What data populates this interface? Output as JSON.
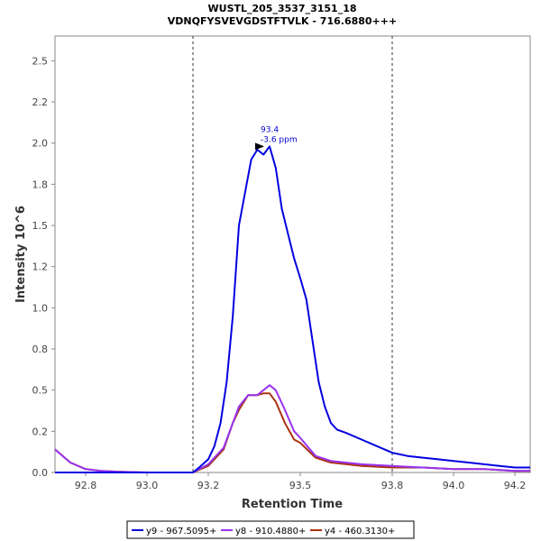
{
  "chart_data": {
    "type": "line",
    "title": "WUSTL_205_3537_3151_18",
    "subtitle": "VDNQFYSVEVGDSTFTVLK - 716.6880+++",
    "xlabel": "Retention Time",
    "ylabel": "Intensity 10^6",
    "xlim": [
      92.7,
      94.25
    ],
    "ylim": [
      0,
      2.65
    ],
    "x_ticks": [
      "92.8",
      "93.0",
      "93.2",
      "93.5",
      "93.8",
      "94.0",
      "94.2"
    ],
    "x_tick_values": [
      92.8,
      93.0,
      93.2,
      93.5,
      93.8,
      94.0,
      94.2
    ],
    "y_ticks": [
      "0.0",
      "0.2",
      "0.5",
      "0.8",
      "1.0",
      "1.2",
      "1.5",
      "1.8",
      "2.0",
      "2.2",
      "2.5"
    ],
    "y_tick_values": [
      0.0,
      0.25,
      0.5,
      0.75,
      1.0,
      1.25,
      1.5,
      1.75,
      2.0,
      2.25,
      2.5
    ],
    "integration_bounds": [
      93.15,
      93.8
    ],
    "peak_annotation": {
      "x": 93.4,
      "y": 1.98,
      "line1": "93.4",
      "line2": "-3.6 ppm"
    },
    "legend_position": "bottom",
    "series": [
      {
        "name": "y9 - 967.5095+",
        "color": "#0000e0",
        "x": [
          92.7,
          93.1,
          93.15,
          93.17,
          93.2,
          93.22,
          93.24,
          93.26,
          93.28,
          93.3,
          93.32,
          93.34,
          93.36,
          93.38,
          93.4,
          93.42,
          93.44,
          93.46,
          93.48,
          93.5,
          93.52,
          93.54,
          93.56,
          93.58,
          93.6,
          93.62,
          93.65,
          93.7,
          93.75,
          93.8,
          93.85,
          93.9,
          93.95,
          94.0,
          94.05,
          94.1,
          94.15,
          94.2,
          94.25
        ],
        "y": [
          0.0,
          0.0,
          0.0,
          0.03,
          0.08,
          0.16,
          0.3,
          0.55,
          0.95,
          1.5,
          1.7,
          1.9,
          1.96,
          1.93,
          1.98,
          1.85,
          1.6,
          1.45,
          1.3,
          1.18,
          1.05,
          0.8,
          0.55,
          0.4,
          0.3,
          0.26,
          0.24,
          0.2,
          0.16,
          0.12,
          0.1,
          0.09,
          0.08,
          0.07,
          0.06,
          0.05,
          0.04,
          0.03,
          0.03
        ]
      },
      {
        "name": "y8 - 910.4880+",
        "color": "#9933ee",
        "x": [
          92.7,
          92.75,
          92.8,
          92.85,
          92.9,
          93.0,
          93.1,
          93.15,
          93.2,
          93.25,
          93.28,
          93.3,
          93.33,
          93.36,
          93.38,
          93.4,
          93.42,
          93.45,
          93.48,
          93.5,
          93.55,
          93.6,
          93.7,
          93.8,
          93.9,
          94.0,
          94.1,
          94.2,
          94.25
        ],
        "y": [
          0.14,
          0.06,
          0.02,
          0.01,
          0.005,
          0.0,
          0.0,
          0.0,
          0.05,
          0.15,
          0.3,
          0.4,
          0.47,
          0.47,
          0.5,
          0.53,
          0.5,
          0.38,
          0.25,
          0.21,
          0.1,
          0.07,
          0.05,
          0.04,
          0.03,
          0.02,
          0.02,
          0.01,
          0.01
        ]
      },
      {
        "name": "y4 - 460.3130+",
        "color": "#aa3311",
        "x": [
          92.7,
          92.75,
          92.8,
          92.85,
          92.9,
          93.0,
          93.1,
          93.15,
          93.2,
          93.25,
          93.28,
          93.3,
          93.33,
          93.36,
          93.38,
          93.4,
          93.42,
          93.45,
          93.48,
          93.5,
          93.55,
          93.6,
          93.7,
          93.8,
          93.9,
          94.0,
          94.1,
          94.2,
          94.25
        ],
        "y": [
          0.14,
          0.06,
          0.02,
          0.01,
          0.005,
          0.0,
          0.0,
          0.0,
          0.04,
          0.14,
          0.3,
          0.38,
          0.47,
          0.47,
          0.48,
          0.48,
          0.43,
          0.3,
          0.2,
          0.18,
          0.09,
          0.06,
          0.04,
          0.03,
          0.03,
          0.02,
          0.02,
          0.01,
          0.01
        ]
      }
    ]
  }
}
